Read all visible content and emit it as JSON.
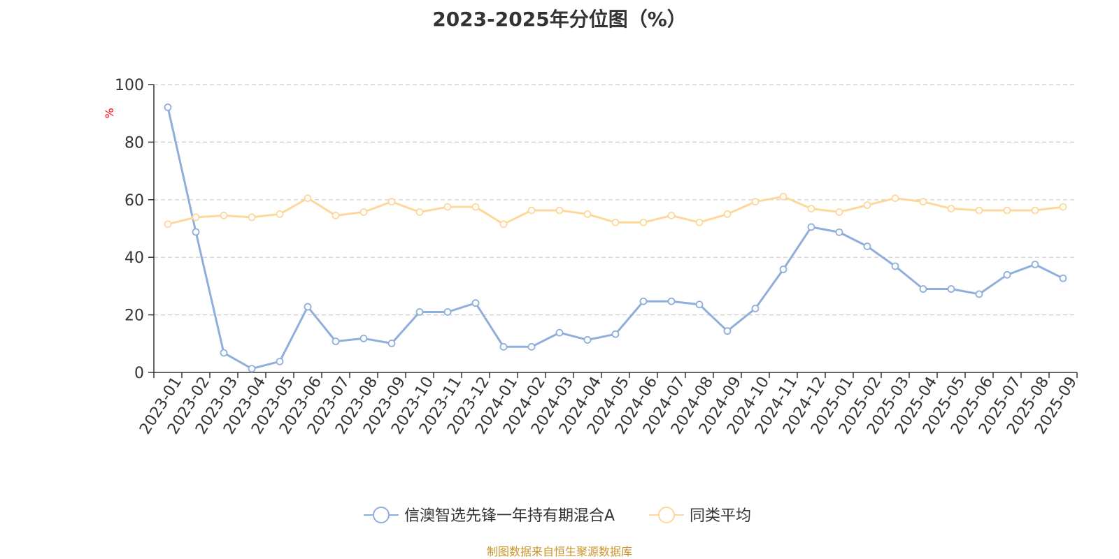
{
  "chart_data": {
    "type": "line",
    "title": "2023-2025年分位图（%）",
    "ylabel": "%",
    "ylim": [
      0,
      100
    ],
    "yticks": [
      0,
      20,
      40,
      60,
      80,
      100
    ],
    "grid": true,
    "legend_position": "bottom",
    "categories": [
      "2023-01",
      "2023-02",
      "2023-03",
      "2023-04",
      "2023-05",
      "2023-06",
      "2023-07",
      "2023-08",
      "2023-09",
      "2023-10",
      "2023-11",
      "2023-12",
      "2024-01",
      "2024-02",
      "2024-03",
      "2024-04",
      "2024-05",
      "2024-06",
      "2024-07",
      "2024-08",
      "2024-09",
      "2024-10",
      "2024-11",
      "2024-12",
      "2025-01",
      "2025-02",
      "2025-03",
      "2025-04",
      "2025-05",
      "2025-06",
      "2025-07",
      "2025-08",
      "2025-09"
    ],
    "series": [
      {
        "name": "信澳智选先锋一年持有期混合A",
        "color": "#8eaedb",
        "values": [
          92.1,
          48.8,
          6.8,
          1.3,
          3.8,
          22.8,
          10.8,
          11.8,
          10.1,
          21.0,
          21.0,
          24.1,
          8.9,
          8.9,
          13.8,
          11.3,
          13.3,
          24.7,
          24.7,
          23.6,
          14.4,
          22.2,
          35.8,
          50.5,
          48.7,
          43.8,
          36.9,
          29.0,
          29.0,
          27.2,
          33.9,
          37.5,
          32.7
        ]
      },
      {
        "name": "同类平均",
        "color": "#fdd89a",
        "values": [
          51.5,
          53.9,
          54.5,
          53.9,
          55.0,
          60.5,
          54.5,
          55.7,
          59.3,
          55.7,
          57.5,
          57.5,
          51.5,
          56.3,
          56.3,
          55.0,
          52.1,
          52.1,
          54.5,
          52.1,
          55.0,
          59.3,
          61.1,
          56.9,
          55.7,
          58.1,
          60.5,
          59.3,
          56.9,
          56.3,
          56.3,
          56.3,
          57.5
        ]
      }
    ]
  },
  "footer": {
    "source_text": "制图数据来自恒生聚源数据库",
    "source_color": "#c9962b"
  },
  "colors": {
    "axis": "#333333",
    "grid": "#cccccc",
    "ylabel": "#ff0000",
    "point_fill": "#ffffff"
  }
}
